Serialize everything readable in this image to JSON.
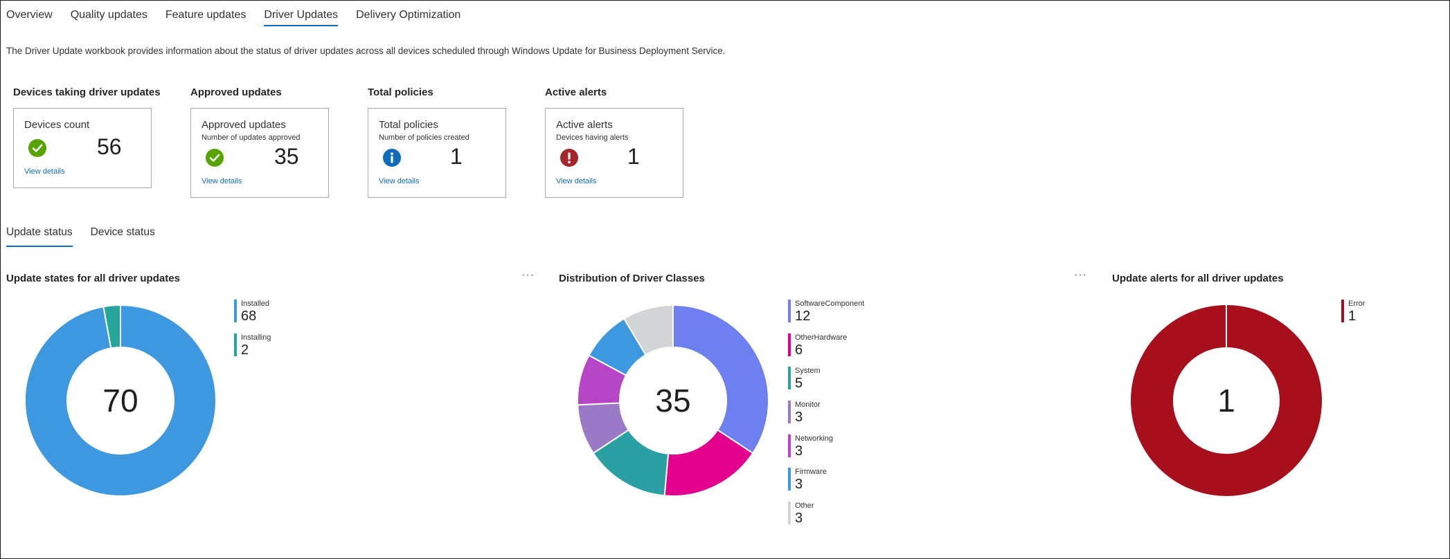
{
  "tabs": [
    "Overview",
    "Quality updates",
    "Feature updates",
    "Driver Updates",
    "Delivery Optimization"
  ],
  "active_tab": 3,
  "description": "The Driver Update workbook provides information about the status of driver updates across all devices scheduled through Windows Update for Business Deployment Service.",
  "tiles": [
    {
      "heading": "Devices taking driver updates",
      "title": "Devices count",
      "subtitle": "",
      "value": "56",
      "link": "View details",
      "icon": "check-circle-icon",
      "color": "#57a300"
    },
    {
      "heading": "Approved updates",
      "title": "Approved updates",
      "subtitle": "Number of updates approved",
      "value": "35",
      "link": "View details",
      "icon": "check-circle-icon",
      "color": "#57a300"
    },
    {
      "heading": "Total policies",
      "title": "Total policies",
      "subtitle": "Number of policies created",
      "value": "1",
      "link": "View details",
      "icon": "info-circle-icon",
      "color": "#0f6cbd"
    },
    {
      "heading": "Active alerts",
      "title": "Active alerts",
      "subtitle": "Devices having alerts",
      "value": "1",
      "link": "View details",
      "icon": "alert-circle-icon",
      "color": "#a4262c"
    }
  ],
  "subtabs": [
    "Update status",
    "Device status"
  ],
  "active_subtab": 0,
  "more_label": "···",
  "chart_data": [
    {
      "type": "pie",
      "title": "Update states for all driver updates",
      "center_label": "70",
      "categories": [
        "Installed",
        "Installing"
      ],
      "values": [
        68,
        2
      ],
      "colors": [
        "#3e98e0",
        "#26a69a"
      ],
      "legend": "right"
    },
    {
      "type": "pie",
      "title": "Distribution of Driver Classes",
      "center_label": "35",
      "categories": [
        "SoftwareComponent",
        "OtherHardware",
        "System",
        "Monitor",
        "Networking",
        "Firmware",
        "Other"
      ],
      "values": [
        12,
        6,
        5,
        3,
        3,
        3,
        3
      ],
      "colors": [
        "#6e80f0",
        "#e3008c",
        "#2aa0a4",
        "#9a7ac6",
        "#b646c5",
        "#3e98e0",
        "#d3d4d6"
      ],
      "legend": "right"
    },
    {
      "type": "pie",
      "title": "Update alerts for all driver updates",
      "center_label": "1",
      "categories": [
        "Error"
      ],
      "values": [
        1
      ],
      "colors": [
        "#a80f1d"
      ],
      "legend": "right"
    }
  ]
}
